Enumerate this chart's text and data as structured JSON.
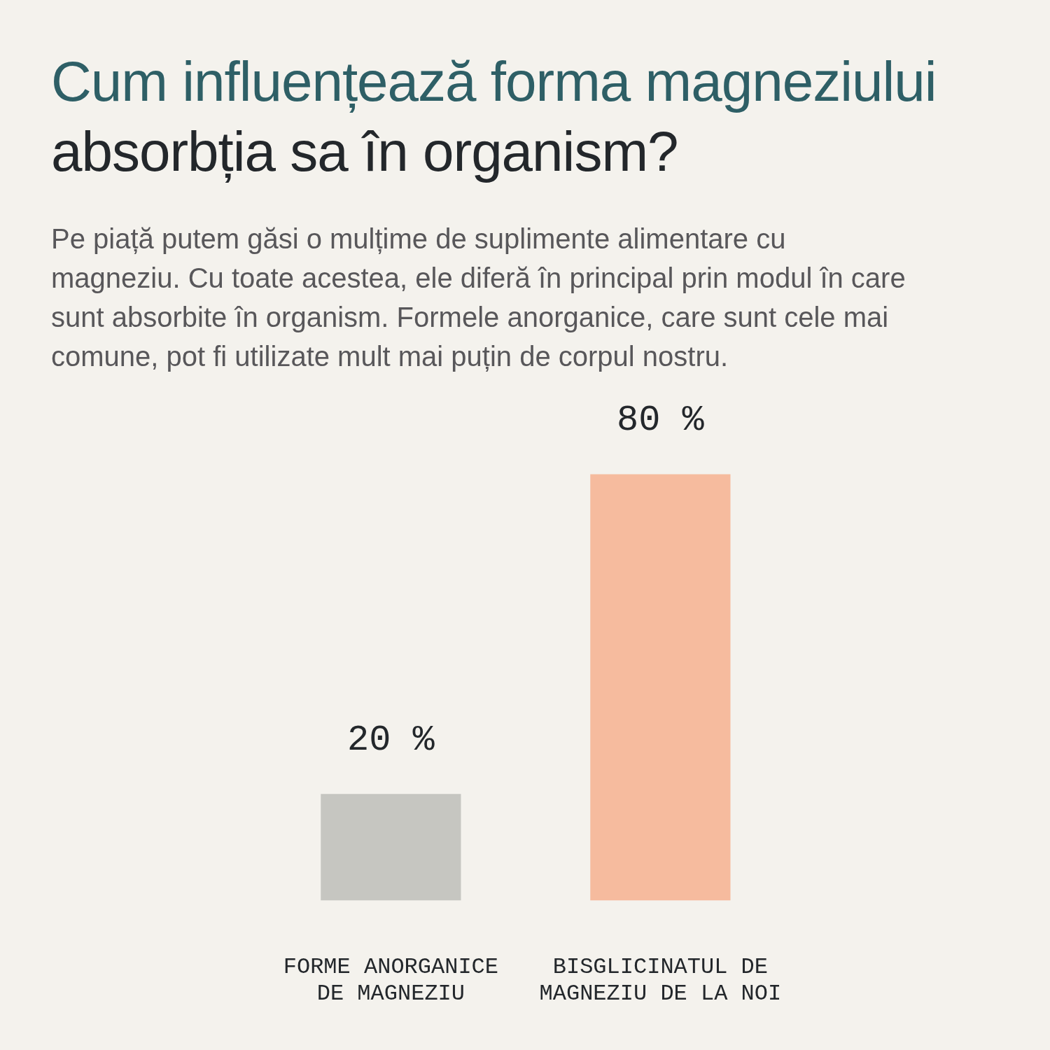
{
  "chart_data": {
    "type": "bar",
    "title": "Cum influențează forma magneziului\nabsorbția sa în organism?",
    "subtitle": "Pe piață putem găsi o mulțime de suplimente alimentare cu\nmagneziu. Cu toate acestea, ele diferă în principal prin modul în care\nsunt absorbite în organism. Formele anorganice, care sunt cele mai\ncomune, pot fi utilizate mult mai puțin de corpul nostru.",
    "categories": [
      "FORME ANORGANICE DE MAGNEZIU",
      "BISGLICINATUL DE MAGNEZIU DE LA NOI"
    ],
    "values": [
      20,
      80
    ],
    "colors": [
      "#c6c6c1",
      "#f6bb9e"
    ],
    "value_labels": [
      "20 %",
      "80 %"
    ]
  }
}
